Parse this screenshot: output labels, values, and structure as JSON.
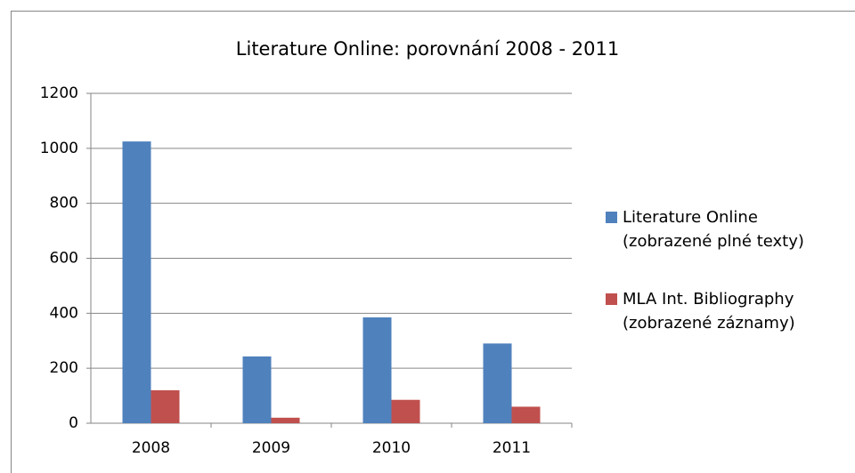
{
  "chart_data": {
    "type": "bar",
    "title": "Literature Online: porovnání  2008 - 2011",
    "categories": [
      "2008",
      "2009",
      "2010",
      "2011"
    ],
    "series": [
      {
        "name": "Literature Online (zobrazené plné texty)",
        "color": "#4f81bd",
        "values": [
          1025,
          243,
          385,
          290
        ]
      },
      {
        "name": "MLA Int. Bibliography (zobrazené záznamy)",
        "color": "#c0504d",
        "values": [
          120,
          20,
          85,
          60
        ]
      }
    ],
    "ylim": [
      0,
      1200
    ],
    "yticks": [
      0,
      200,
      400,
      600,
      800,
      1000,
      1200
    ],
    "grid": true,
    "legend": "right"
  }
}
